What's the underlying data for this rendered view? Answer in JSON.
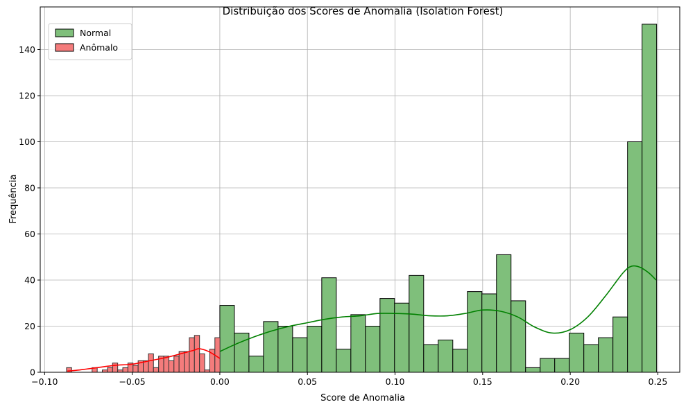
{
  "chart_data": {
    "type": "histogram",
    "title": "Distribuição dos Scores de Anomalia (Isolation Forest)",
    "xlabel": "Score de Anomalia",
    "ylabel": "Frequência",
    "xlim": [
      -0.1025,
      0.2625
    ],
    "ylim": [
      0,
      158.5
    ],
    "xticks": [
      -0.1,
      -0.05,
      0.0,
      0.05,
      0.1,
      0.15,
      0.2,
      0.25
    ],
    "xtick_labels": [
      "−0.10",
      "−0.05",
      "0.00",
      "0.05",
      "0.10",
      "0.15",
      "0.20",
      "0.25"
    ],
    "yticks": [
      0,
      20,
      40,
      60,
      80,
      100,
      120,
      140
    ],
    "ytick_labels": [
      "0",
      "20",
      "40",
      "60",
      "80",
      "100",
      "120",
      "140"
    ],
    "grid": true,
    "legend_placement": "top-left",
    "series": [
      {
        "name": "Normal",
        "color": "#7fbf7b",
        "edge_color": "#000000",
        "kde_color": "#008000",
        "bin_start": 0.0,
        "bin_width": 0.00831,
        "counts": [
          29,
          17,
          7,
          22,
          20,
          15,
          20,
          41,
          10,
          25,
          20,
          32,
          30,
          42,
          12,
          14,
          10,
          35,
          34,
          51,
          31,
          2,
          6,
          6,
          17,
          12,
          15,
          24,
          100,
          151
        ],
        "kde_x": [
          0.0,
          0.01,
          0.02,
          0.03,
          0.04,
          0.05,
          0.06,
          0.07,
          0.08,
          0.09,
          0.1,
          0.11,
          0.12,
          0.13,
          0.14,
          0.15,
          0.16,
          0.17,
          0.18,
          0.19,
          0.2,
          0.21,
          0.22,
          0.23,
          0.235,
          0.24,
          0.245,
          0.249
        ],
        "kde_y": [
          9,
          12.5,
          15.5,
          18,
          20,
          21.5,
          23,
          24,
          24.5,
          25.5,
          25.5,
          25.2,
          24.5,
          24.5,
          25.5,
          27,
          26.5,
          24,
          19.5,
          17,
          18.5,
          24,
          33,
          43,
          46,
          45.5,
          43,
          40
        ]
      },
      {
        "name": "Anômalo",
        "color": "#f47c7c",
        "edge_color": "#333333",
        "kde_color": "#ff0000",
        "bin_start": -0.0875,
        "bin_width": 0.00292,
        "counts": [
          2,
          0,
          0,
          0,
          0,
          2,
          0,
          1,
          2,
          4,
          1,
          2,
          4,
          3,
          5,
          5,
          8,
          2,
          7,
          7,
          5,
          7,
          9,
          9,
          15,
          16,
          8,
          1,
          10,
          15
        ],
        "kde_x": [
          -0.087,
          -0.08,
          -0.07,
          -0.06,
          -0.05,
          -0.04,
          -0.03,
          -0.02,
          -0.015,
          -0.012,
          -0.008,
          -0.004,
          0.0
        ],
        "kde_y": [
          0.5,
          1,
          2,
          3,
          3.5,
          5,
          6.5,
          8.5,
          9.5,
          10.2,
          9.5,
          8,
          6
        ]
      }
    ]
  }
}
